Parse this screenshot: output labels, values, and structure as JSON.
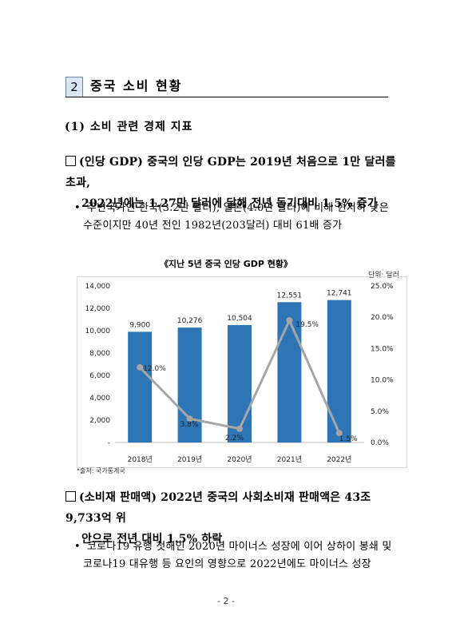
{
  "section": {
    "number": "2",
    "title": "중국 소비 현황"
  },
  "subheading": "(1) 소비 관련 경제 지표",
  "paragraph1": {
    "line1": "(인당 GDP) 중국의 인당 GDP는 2019년 처음으로 1만 달러를 초과,",
    "line2": "2022년에는 1.27만 달러에 달해 전년 동기대비 1.5% 증가"
  },
  "bullet1": {
    "marker": "•",
    "line1": "주변국가인 한국(3.2만 달러), 일본(4.0만 달러)에 비해 현저히 낮은",
    "line2": "수준이지만 40년 전인 1982년(203달러) 대비 61배 증가"
  },
  "chart_title": "《지난 5년 중국 인당 GDP 현황》",
  "chart_unit": "단위: 달러",
  "chart_data": {
    "type": "bar",
    "categories": [
      "2018년",
      "2019년",
      "2020년",
      "2021년",
      "2022년"
    ],
    "series": [
      {
        "name": "",
        "type": "bar",
        "axis": "left",
        "values": [
          9900,
          10276,
          10504,
          12551,
          12741
        ],
        "labels": [
          "9,900",
          "10,276",
          "10,504",
          "12,551",
          "12,741"
        ],
        "color": "#2e75b6"
      },
      {
        "name": "",
        "type": "line",
        "axis": "right",
        "values": [
          12.0,
          3.8,
          2.2,
          19.5,
          1.5
        ],
        "labels": [
          "12.0%",
          "3.8%",
          "2.2%",
          "19.5%",
          "1.5%"
        ],
        "color": "#a6a6a6"
      }
    ],
    "left_axis": {
      "ylim": [
        0,
        14000
      ],
      "ticks": [
        0,
        2000,
        4000,
        6000,
        8000,
        10000,
        12000,
        14000
      ],
      "tick_labels": [
        "-",
        "2,000",
        "4,000",
        "6,000",
        "8,000",
        "10,000",
        "12,000",
        "14,000"
      ]
    },
    "right_axis": {
      "ylim": [
        0,
        25
      ],
      "ticks": [
        0,
        5,
        10,
        15,
        20,
        25
      ],
      "tick_labels": [
        "0.0%",
        "5.0%",
        "10.0%",
        "15.0%",
        "20.0%",
        "25.0%"
      ]
    },
    "grid": false,
    "legend": "none"
  },
  "source": "*출처: 국가통계국",
  "paragraph2": {
    "line1": "(소비재 판매액) 2022년 중국의 사회소비재 판매액은 43조 9,733억 위",
    "line2": "안으로 전년 대비 1.5% 하락"
  },
  "bullet2": {
    "marker": "•",
    "line1": "코로나19 유행 첫해인 2020년 마이너스 성장에 이어 상하이 봉쇄 및",
    "line2": "코로나19 대유행 등 요인의 영향으로 2022년에도 마이너스 성장"
  },
  "page_number": "- 2 -"
}
